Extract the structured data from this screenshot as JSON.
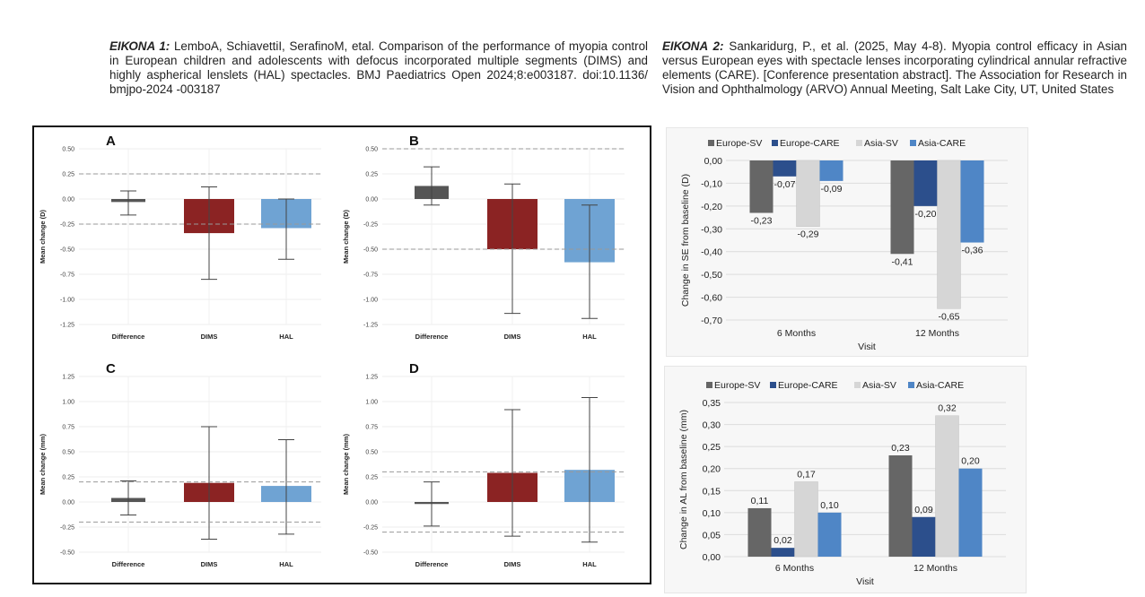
{
  "caption1": {
    "label": "ΕΙΚΟΝΑ 1:",
    "text": " LemboA, SchiavettiI, SerafinoM, etal. Comparison of the performance of myopia control in European children and adolescents with defocus incorporated multiple segments (DIMS) and highly aspherical lenslets (HAL) spectacles. BMJ Paediatrics Open 2024;8:e003187. doi:10.1136/ bmjpo-2024 -003187"
  },
  "caption2": {
    "label": "ΕΙΚΟΝΑ 2:",
    "text": " Sankaridurg, P., et al. (2025, May 4-8). Myopia control efficacy in Asian versus European eyes with spectacle lenses incorporating cylindrical annular refractive elements (CARE). [Conference presentation abstract]. The Association for Research in Vision and Ophthalmology (ARVO) Annual Meeting, Salt Lake City, UT, United States"
  },
  "colors": {
    "difference": "#555555",
    "dims": "#8b2323",
    "hal": "#6fa3d3",
    "europe_sv": "#666666",
    "europe_care": "#2c4f8c",
    "asia_sv": "#d6d6d6",
    "asia_care": "#4f86c6"
  },
  "chart_data": [
    {
      "panel": "A",
      "type": "bar",
      "ylabel": "Mean change (D)",
      "categories": [
        "Difference",
        "DIMS",
        "HAL"
      ],
      "values": [
        -0.03,
        -0.34,
        -0.29
      ],
      "error_low": [
        -0.16,
        -0.8,
        -0.6
      ],
      "error_high": [
        0.08,
        0.12,
        0.0
      ],
      "ylim": [
        -1.25,
        0.5
      ],
      "yticks": [
        "0.50",
        "0.25",
        "0.00",
        "-0.25",
        "-0.50",
        "-0.75",
        "-1.00",
        "-1.25"
      ],
      "reference_lines": [
        0.25,
        -0.25
      ]
    },
    {
      "panel": "B",
      "type": "bar",
      "ylabel": "Mean change (D)",
      "categories": [
        "Difference",
        "DIMS",
        "HAL"
      ],
      "values": [
        0.13,
        -0.5,
        -0.63
      ],
      "error_low": [
        -0.06,
        -1.14,
        -1.19
      ],
      "error_high": [
        0.32,
        0.15,
        -0.06
      ],
      "ylim": [
        -1.25,
        0.5
      ],
      "yticks": [
        "0.50",
        "0.25",
        "0.00",
        "-0.25",
        "-0.50",
        "-0.75",
        "-1.00",
        "-1.25"
      ],
      "reference_lines": [
        0.5,
        -0.5
      ]
    },
    {
      "panel": "C",
      "type": "bar",
      "ylabel": "Mean change (mm)",
      "categories": [
        "Difference",
        "DIMS",
        "HAL"
      ],
      "values": [
        0.04,
        0.19,
        0.16
      ],
      "error_low": [
        -0.13,
        -0.37,
        -0.32
      ],
      "error_high": [
        0.21,
        0.75,
        0.62
      ],
      "ylim": [
        -0.5,
        1.25
      ],
      "yticks": [
        "1.25",
        "1.00",
        "0.75",
        "0.50",
        "0.25",
        "0.00",
        "-0.25",
        "-0.50"
      ],
      "reference_lines": [
        0.2,
        -0.2
      ]
    },
    {
      "panel": "D",
      "type": "bar",
      "ylabel": "Mean change (mm)",
      "categories": [
        "Difference",
        "DIMS",
        "HAL"
      ],
      "values": [
        -0.02,
        0.29,
        0.32
      ],
      "error_low": [
        -0.24,
        -0.34,
        -0.4
      ],
      "error_high": [
        0.2,
        0.92,
        1.04
      ],
      "ylim": [
        -0.5,
        1.25
      ],
      "yticks": [
        "1.25",
        "1.00",
        "0.75",
        "0.50",
        "0.25",
        "0.00",
        "-0.25",
        "-0.50"
      ],
      "reference_lines": [
        0.3,
        -0.3
      ]
    },
    {
      "type": "bar",
      "xlabel": "Visit",
      "ylabel": "Change in SE from baseline (D)",
      "categories": [
        "6 Months",
        "12 Months"
      ],
      "series": [
        {
          "name": "Europe-SV",
          "values": [
            -0.23,
            -0.41
          ],
          "labels": [
            "-0,23",
            "-0,41"
          ]
        },
        {
          "name": "Europe-CARE",
          "values": [
            -0.07,
            -0.2
          ],
          "labels": [
            "-0,07",
            "-0,20"
          ]
        },
        {
          "name": "Asia-SV",
          "values": [
            -0.29,
            -0.65
          ],
          "labels": [
            "-0,29",
            "-0,65"
          ]
        },
        {
          "name": "Asia-CARE",
          "values": [
            -0.09,
            -0.36
          ],
          "labels": [
            "-0,09",
            "-0,36"
          ]
        }
      ],
      "ylim": [
        -0.7,
        0.0
      ],
      "yticks": [
        "0,00",
        "-0,10",
        "-0,20",
        "-0,30",
        "-0,40",
        "-0,50",
        "-0,60",
        "-0,70"
      ],
      "legend": "top"
    },
    {
      "type": "bar",
      "xlabel": "Visit",
      "ylabel": "Change in AL from baseline (mm)",
      "categories": [
        "6 Months",
        "12 Months"
      ],
      "series": [
        {
          "name": "Europe-SV",
          "values": [
            0.11,
            0.23
          ],
          "labels": [
            "0,11",
            "0,23"
          ]
        },
        {
          "name": "Europe-CARE",
          "values": [
            0.02,
            0.09
          ],
          "labels": [
            "0,02",
            "0,09"
          ]
        },
        {
          "name": "Asia-SV",
          "values": [
            0.17,
            0.32
          ],
          "labels": [
            "0,17",
            "0,32"
          ]
        },
        {
          "name": "Asia-CARE",
          "values": [
            0.1,
            0.2
          ],
          "labels": [
            "0,10",
            "0,20"
          ]
        }
      ],
      "ylim": [
        0.0,
        0.35
      ],
      "yticks": [
        "0,35",
        "0,30",
        "0,25",
        "0,20",
        "0,15",
        "0,10",
        "0,05",
        "0,00"
      ],
      "legend": "top"
    }
  ]
}
